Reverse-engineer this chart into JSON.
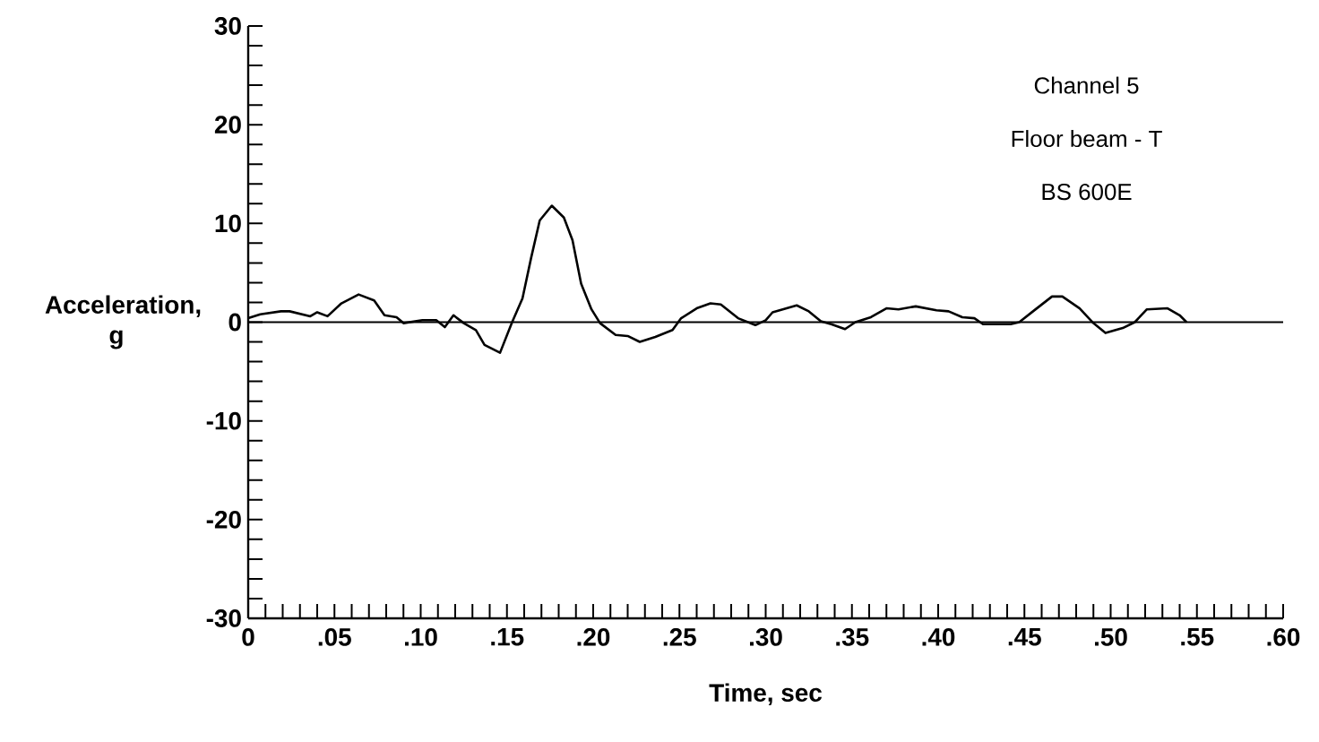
{
  "chart_data": {
    "type": "line",
    "xlabel": "Time, sec",
    "ylabel": "Acceleration, g",
    "annotations": [
      "Channel 5",
      "Floor beam - T",
      "BS 600E"
    ],
    "xlim": [
      0,
      0.6
    ],
    "ylim": [
      -30,
      30
    ],
    "xticks": [
      0,
      {
        "value": 0.01,
        "label": null
      },
      {
        "value": 0.02,
        "label": null
      },
      {
        "value": 0.03,
        "label": null
      },
      {
        "value": 0.04,
        "label": null
      },
      {
        "value": 0.05,
        "label": ".05"
      },
      {
        "value": 0.06,
        "label": null
      },
      {
        "value": 0.07,
        "label": null
      },
      {
        "value": 0.08,
        "label": null
      },
      {
        "value": 0.09,
        "label": null
      },
      {
        "value": 0.1,
        "label": ".10"
      },
      {
        "value": 0.11,
        "label": null
      },
      {
        "value": 0.12,
        "label": null
      },
      {
        "value": 0.13,
        "label": null
      },
      {
        "value": 0.14,
        "label": null
      },
      {
        "value": 0.15,
        "label": ".15"
      },
      {
        "value": 0.16,
        "label": null
      },
      {
        "value": 0.17,
        "label": null
      },
      {
        "value": 0.18,
        "label": null
      },
      {
        "value": 0.19,
        "label": null
      },
      {
        "value": 0.2,
        "label": ".20"
      },
      {
        "value": 0.21,
        "label": null
      },
      {
        "value": 0.22,
        "label": null
      },
      {
        "value": 0.23,
        "label": null
      },
      {
        "value": 0.24,
        "label": null
      },
      {
        "value": 0.25,
        "label": ".25"
      },
      {
        "value": 0.26,
        "label": null
      },
      {
        "value": 0.27,
        "label": null
      },
      {
        "value": 0.28,
        "label": null
      },
      {
        "value": 0.29,
        "label": null
      },
      {
        "value": 0.3,
        "label": ".30"
      },
      {
        "value": 0.31,
        "label": null
      },
      {
        "value": 0.32,
        "label": null
      },
      {
        "value": 0.33,
        "label": null
      },
      {
        "value": 0.34,
        "label": null
      },
      {
        "value": 0.35,
        "label": ".35"
      },
      {
        "value": 0.36,
        "label": null
      },
      {
        "value": 0.37,
        "label": null
      },
      {
        "value": 0.38,
        "label": null
      },
      {
        "value": 0.39,
        "label": null
      },
      {
        "value": 0.4,
        "label": ".40"
      },
      {
        "value": 0.41,
        "label": null
      },
      {
        "value": 0.42,
        "label": null
      },
      {
        "value": 0.43,
        "label": null
      },
      {
        "value": 0.44,
        "label": null
      },
      {
        "value": 0.45,
        "label": ".45"
      },
      {
        "value": 0.46,
        "label": null
      },
      {
        "value": 0.47,
        "label": null
      },
      {
        "value": 0.48,
        "label": null
      },
      {
        "value": 0.49,
        "label": null
      },
      {
        "value": 0.5,
        "label": ".50"
      },
      {
        "value": 0.51,
        "label": null
      },
      {
        "value": 0.52,
        "label": null
      },
      {
        "value": 0.53,
        "label": null
      },
      {
        "value": 0.54,
        "label": null
      },
      {
        "value": 0.55,
        "label": ".55"
      },
      {
        "value": 0.56,
        "label": null
      },
      {
        "value": 0.57,
        "label": null
      },
      {
        "value": 0.58,
        "label": null
      },
      {
        "value": 0.59,
        "label": null
      },
      {
        "value": 0.6,
        "label": ".60"
      }
    ],
    "yticks": [
      -30,
      {
        "value": -28,
        "label": null
      },
      {
        "value": -26,
        "label": null
      },
      {
        "value": -24,
        "label": null
      },
      {
        "value": -22,
        "label": null
      },
      -20,
      {
        "value": -18,
        "label": null
      },
      {
        "value": -16,
        "label": null
      },
      {
        "value": -14,
        "label": null
      },
      {
        "value": -12,
        "label": null
      },
      -10,
      {
        "value": -8,
        "label": null
      },
      {
        "value": -6,
        "label": null
      },
      {
        "value": -4,
        "label": null
      },
      {
        "value": -2,
        "label": null
      },
      0,
      {
        "value": 2,
        "label": null
      },
      {
        "value": 4,
        "label": null
      },
      {
        "value": 6,
        "label": null
      },
      {
        "value": 8,
        "label": null
      },
      10,
      {
        "value": 12,
        "label": null
      },
      {
        "value": 14,
        "label": null
      },
      {
        "value": 16,
        "label": null
      },
      {
        "value": 18,
        "label": null
      },
      20,
      {
        "value": 22,
        "label": null
      },
      {
        "value": 24,
        "label": null
      },
      {
        "value": 26,
        "label": null
      },
      {
        "value": 28,
        "label": null
      },
      30
    ],
    "ref_lines": [
      {
        "axis": "y",
        "value": 0,
        "color": "#000000"
      }
    ],
    "series": [
      {
        "color": "#000000",
        "x": [
          0,
          0.007,
          0.019,
          0.024,
          0.036,
          0.04,
          0.046,
          0.054,
          0.064,
          0.073,
          0.079,
          0.086,
          0.09,
          0.101,
          0.109,
          0.114,
          0.119,
          0.125,
          0.132,
          0.137,
          0.146,
          0.153,
          0.159,
          0.164,
          0.169,
          0.176,
          0.183,
          0.188,
          0.193,
          0.199,
          0.204,
          0.213,
          0.22,
          0.227,
          0.236,
          0.246,
          0.251,
          0.26,
          0.268,
          0.274,
          0.284,
          0.294,
          0.3,
          0.304,
          0.318,
          0.325,
          0.332,
          0.338,
          0.346,
          0.352,
          0.361,
          0.37,
          0.377,
          0.387,
          0.399,
          0.406,
          0.414,
          0.421,
          0.426,
          0.442,
          0.447,
          0.455,
          0.466,
          0.472,
          0.482,
          0.49,
          0.497,
          0.507,
          0.514,
          0.521,
          0.533,
          0.54,
          0.544
        ],
        "values": [
          0.4,
          0.8,
          1.1,
          1.1,
          0.6,
          1.0,
          0.6,
          1.9,
          2.8,
          2.2,
          0.7,
          0.5,
          -0.1,
          0.2,
          0.2,
          -0.5,
          0.7,
          -0.1,
          -0.8,
          -2.3,
          -3.1,
          0,
          2.4,
          6.5,
          10.3,
          11.8,
          10.6,
          8.3,
          3.9,
          1.3,
          -0.1,
          -1.3,
          -1.4,
          -2.0,
          -1.5,
          -0.8,
          0.4,
          1.4,
          1.9,
          1.8,
          0.4,
          -0.3,
          0.2,
          1.0,
          1.7,
          1.1,
          0.1,
          -0.2,
          -0.7,
          0,
          0.5,
          1.4,
          1.3,
          1.6,
          1.2,
          1.1,
          0.5,
          0.4,
          -0.2,
          -0.2,
          0,
          1.1,
          2.6,
          2.6,
          1.4,
          -0.1,
          -1.1,
          -0.6,
          0,
          1.3,
          1.4,
          0.7,
          0
        ]
      }
    ]
  }
}
